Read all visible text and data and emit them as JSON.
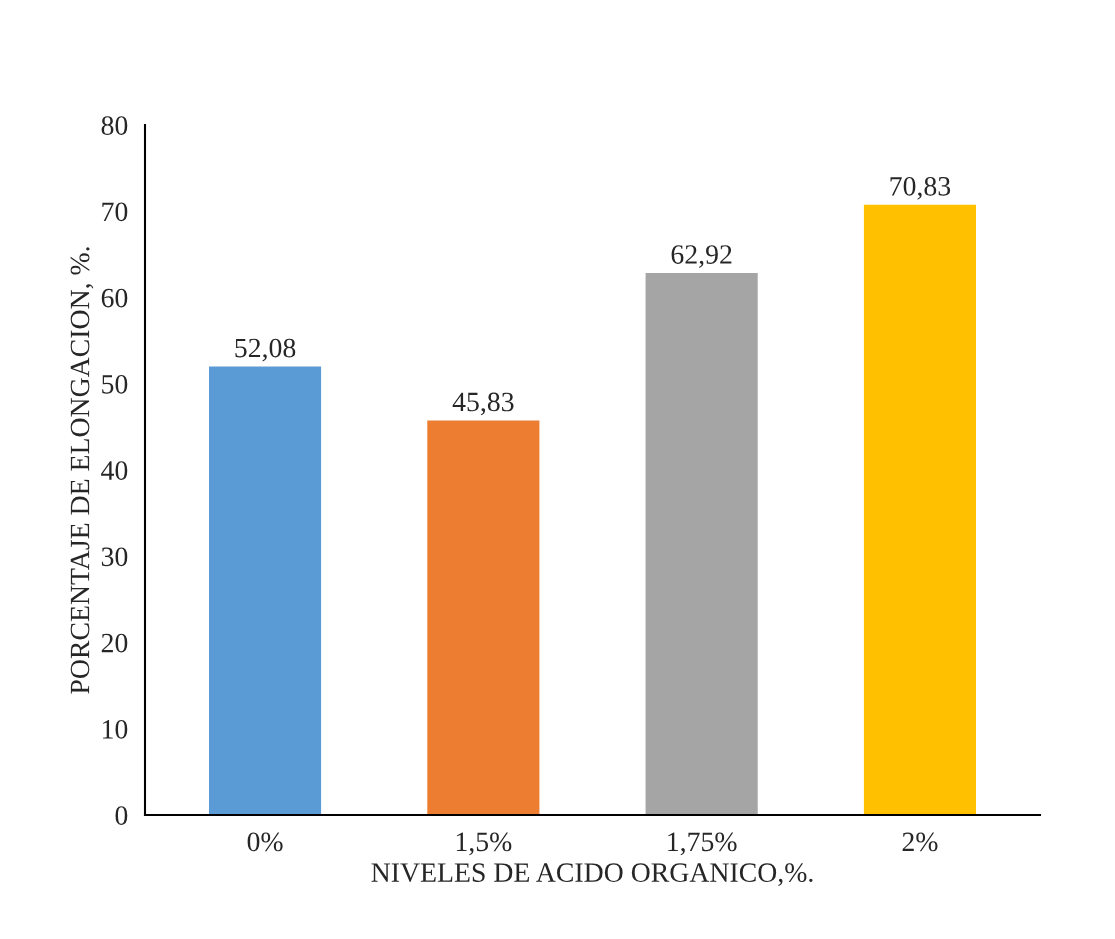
{
  "chart_data": {
    "type": "bar",
    "xlabel": "NIVELES DE ACIDO ORGANICO,%.",
    "ylabel": "PORCENTAJE DE ELONGACION, %.",
    "categories": [
      "0%",
      "1,5%",
      "1,75%",
      "2%"
    ],
    "values": [
      52.08,
      45.83,
      62.92,
      70.83
    ],
    "colors": [
      "#5b9bd5",
      "#ed7d31",
      "#a5a5a5",
      "#ffc000"
    ],
    "value_labels": [
      "52,08",
      "45,83",
      "62,92",
      "70,83"
    ],
    "ylim": [
      0,
      80
    ],
    "yticks": [
      0,
      10,
      20,
      30,
      40,
      50,
      60,
      70,
      80
    ],
    "grid": false
  }
}
